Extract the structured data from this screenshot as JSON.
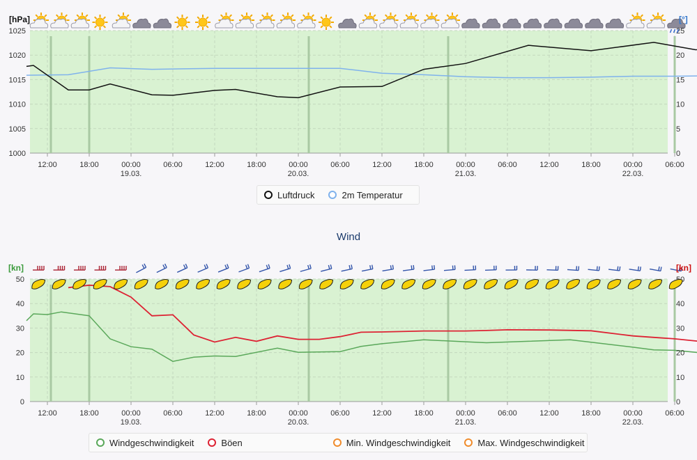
{
  "colors": {
    "plot_bg": "#d9f2d2",
    "pressure": "#111111",
    "temperature": "#7fb2ec",
    "wind": "#5aa85a",
    "gust": "#dd2233",
    "min_wind": "#f08c2c",
    "max_wind": "#f08c2c",
    "day_marker": "#a9c9a3",
    "wind_unit_left": "#3a9a3a",
    "wind_unit_right": "#cc1111",
    "temp_unit": "#3377cc"
  },
  "x_ticks": [
    {
      "time": "12:00",
      "date": ""
    },
    {
      "time": "18:00",
      "date": ""
    },
    {
      "time": "00:00",
      "date": "19.03."
    },
    {
      "time": "06:00",
      "date": ""
    },
    {
      "time": "12:00",
      "date": ""
    },
    {
      "time": "18:00",
      "date": ""
    },
    {
      "time": "00:00",
      "date": "20.03."
    },
    {
      "time": "06:00",
      "date": ""
    },
    {
      "time": "12:00",
      "date": ""
    },
    {
      "time": "18:00",
      "date": ""
    },
    {
      "time": "00:00",
      "date": "21.03."
    },
    {
      "time": "06:00",
      "date": ""
    },
    {
      "time": "12:00",
      "date": ""
    },
    {
      "time": "18:00",
      "date": ""
    },
    {
      "time": "00:00",
      "date": "22.03."
    },
    {
      "time": "06:00",
      "date": ""
    }
  ],
  "weather_icons": [
    "partly-cloudy-icon",
    "partly-cloudy-icon",
    "partly-cloudy-icon",
    "sun-icon",
    "partly-cloudy-icon",
    "cloud-icon",
    "cloud-icon",
    "sun-icon",
    "sun-icon",
    "partly-cloudy-icon",
    "partly-cloudy-icon",
    "partly-cloudy-icon",
    "partly-cloudy-icon",
    "partly-cloudy-icon",
    "sun-icon",
    "cloud-icon",
    "partly-cloudy-icon",
    "partly-cloudy-icon",
    "partly-cloudy-icon",
    "partly-cloudy-icon",
    "partly-cloudy-icon",
    "cloud-icon",
    "cloud-icon",
    "cloud-icon",
    "cloud-icon",
    "cloud-icon",
    "cloud-icon",
    "cloud-icon",
    "cloud-icon",
    "partly-cloudy-icon",
    "partly-cloudy-icon",
    "rain-icon"
  ],
  "wind_barb_colors": [
    "#aa2233",
    "#aa2233",
    "#aa2233",
    "#aa2233",
    "#aa2233",
    "#3355aa",
    "#3355aa",
    "#3355aa",
    "#3355aa",
    "#3355aa",
    "#3355aa",
    "#3355aa",
    "#3355aa",
    "#3355aa",
    "#3355aa",
    "#3355aa",
    "#3355aa",
    "#3355aa",
    "#3355aa",
    "#3355aa",
    "#3355aa",
    "#3355aa",
    "#3355aa",
    "#3355aa",
    "#3355aa",
    "#3355aa",
    "#3355aa",
    "#3355aa",
    "#3355aa",
    "#3355aa",
    "#3355aa",
    "#3355aa"
  ],
  "chart_data": [
    {
      "type": "line",
      "y_left_unit": "[hPa]",
      "y_right_unit": "[°]",
      "y_left_ticks": [
        "1000",
        "1005",
        "1010",
        "1015",
        "1020",
        "1025"
      ],
      "y_right_ticks": [
        "0",
        "5",
        "10",
        "15",
        "20",
        "25"
      ],
      "ylim_left": [
        1000,
        1025
      ],
      "ylim_right": [
        0,
        25
      ],
      "grid": true,
      "legend_position": "bottom",
      "series": [
        {
          "name": "Luftdruck",
          "axis": "left",
          "x_hours": [
            -3,
            -2,
            3,
            6,
            9,
            15,
            18,
            24,
            27,
            33,
            36,
            42,
            48,
            54,
            60,
            69,
            78,
            87,
            93,
            102,
            105,
            111
          ],
          "values": [
            1017.7,
            1017.9,
            1012.9,
            1012.9,
            1014.1,
            1011.9,
            1011.8,
            1012.8,
            1013,
            1011.5,
            1011.3,
            1013.5,
            1013.6,
            1017.1,
            1018.3,
            1022,
            1020.9,
            1022.6,
            1021.1,
            1021.5,
            1021.5,
            1019.8
          ]
        },
        {
          "name": "2m Temperatur",
          "axis": "right",
          "x_hours": [
            -3,
            3,
            9,
            15,
            24,
            30,
            36,
            42,
            48,
            54,
            60,
            66,
            72,
            78,
            84,
            90,
            96,
            102,
            111
          ],
          "values": [
            15.9,
            16.0,
            17.4,
            17.1,
            17.3,
            17.3,
            17.3,
            17.3,
            16.3,
            16.0,
            15.6,
            15.4,
            15.4,
            15.5,
            15.7,
            15.7,
            15.8,
            15.9,
            16.1
          ]
        }
      ]
    },
    {
      "type": "line",
      "title": "Wind",
      "y_left_unit": "[kn]",
      "y_right_unit": "[kn]",
      "y_left_ticks": [
        "0",
        "10",
        "20",
        "30",
        "40",
        "50"
      ],
      "y_right_ticks": [
        "0",
        "10",
        "20",
        "30",
        "40",
        "50"
      ],
      "ylim": [
        0,
        50
      ],
      "grid": true,
      "legend_position": "bottom",
      "series": [
        {
          "name": "Windgeschwindigkeit",
          "x_hours": [
            -3,
            -2,
            0,
            2,
            6,
            9,
            12,
            15,
            18,
            21,
            24,
            27,
            33,
            36,
            42,
            45,
            48,
            54,
            60,
            63,
            69,
            75,
            78,
            84,
            87,
            90,
            96,
            102,
            108,
            111
          ],
          "values": [
            33,
            35.8,
            35.5,
            36.6,
            35,
            25.6,
            22.4,
            21.4,
            16.4,
            18.1,
            18.6,
            18.4,
            21.8,
            20.1,
            20.4,
            22.5,
            23.6,
            25.2,
            24.4,
            24,
            24.6,
            25.2,
            24.2,
            22.2,
            21.1,
            20.9,
            19.3,
            19.3,
            22.4,
            17.5
          ]
        },
        {
          "name": "Böen",
          "x_hours": [
            3,
            6,
            9,
            12,
            15,
            18,
            21,
            24,
            27,
            30,
            33,
            36,
            39,
            42,
            45,
            48,
            54,
            60,
            63,
            66,
            72,
            78,
            84,
            87,
            90,
            96,
            102,
            105,
            108,
            111
          ],
          "values": [
            46.5,
            47.5,
            46.9,
            42.6,
            35,
            35.4,
            27.2,
            24.3,
            26.2,
            24.6,
            26.8,
            25.4,
            25.4,
            26.5,
            28.3,
            28.4,
            28.8,
            28.8,
            29,
            29.3,
            29.2,
            28.9,
            26.8,
            26.2,
            25.6,
            23.9,
            25.9,
            27.1,
            27.3,
            26.3
          ]
        },
        {
          "name": "Min. Windgeschwindigkeit",
          "values": []
        },
        {
          "name": "Max. Windgeschwindigkeit",
          "values": []
        }
      ]
    }
  ],
  "wind_legend_labels": [
    "Windgeschwindigkeit",
    "Böen",
    "Min. Windgeschwindigkeit",
    "Max. Windgeschwindigkeit"
  ]
}
